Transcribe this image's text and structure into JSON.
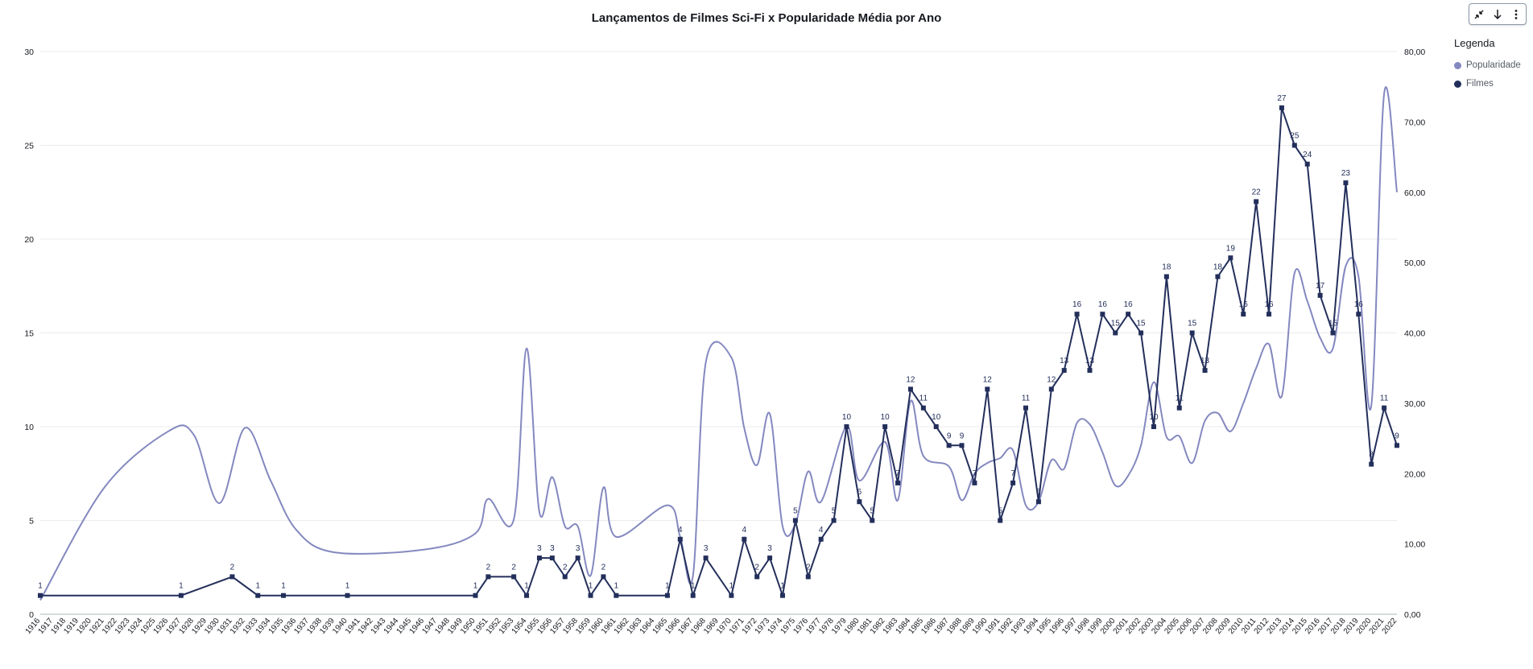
{
  "toolbar": {
    "icons": [
      "collapse-icon",
      "download-icon",
      "more-options-icon"
    ]
  },
  "chart_data": {
    "type": "line",
    "title": "Lançamentos de Filmes Sci-Fi x Popularidade Média por Ano",
    "legend": {
      "title": "Legenda",
      "position": "top-right"
    },
    "grid": true,
    "y_left": {
      "range": [
        0,
        30
      ],
      "ticks": [
        "0",
        "5",
        "10",
        "15",
        "20",
        "25",
        "30"
      ]
    },
    "y_right": {
      "range": [
        0,
        80
      ],
      "ticks": [
        "0,00",
        "10,00",
        "20,00",
        "30,00",
        "40,00",
        "50,00",
        "60,00",
        "70,00",
        "80,00"
      ]
    },
    "x": [
      "1916",
      "1917",
      "1918",
      "1919",
      "1920",
      "1921",
      "1922",
      "1923",
      "1924",
      "1925",
      "1926",
      "1927",
      "1928",
      "1929",
      "1930",
      "1931",
      "1932",
      "1933",
      "1934",
      "1935",
      "1936",
      "1937",
      "1938",
      "1939",
      "1940",
      "1941",
      "1942",
      "1943",
      "1944",
      "1945",
      "1946",
      "1947",
      "1948",
      "1949",
      "1950",
      "1951",
      "1952",
      "1953",
      "1954",
      "1955",
      "1956",
      "1957",
      "1958",
      "1959",
      "1960",
      "1961",
      "1962",
      "1963",
      "1964",
      "1965",
      "1966",
      "1967",
      "1968",
      "1969",
      "1970",
      "1971",
      "1972",
      "1973",
      "1974",
      "1975",
      "1976",
      "1977",
      "1978",
      "1979",
      "1980",
      "1981",
      "1982",
      "1983",
      "1984",
      "1985",
      "1986",
      "1987",
      "1988",
      "1989",
      "1990",
      "1991",
      "1992",
      "1993",
      "1994",
      "1995",
      "1996",
      "1997",
      "1998",
      "1999",
      "2000",
      "2001",
      "2002",
      "2003",
      "2004",
      "2005",
      "2006",
      "2007",
      "2008",
      "2009",
      "2010",
      "2011",
      "2012",
      "2013",
      "2014",
      "2015",
      "2016",
      "2017",
      "2018",
      "2019",
      "2020",
      "2021",
      "2022"
    ],
    "series": [
      {
        "name": "Popularidade",
        "axis": "right",
        "color": "#8488bf",
        "points": [
          [
            1916,
            2
          ],
          [
            1921,
            18
          ],
          [
            1926,
            26
          ],
          [
            1928,
            25.5
          ],
          [
            1930,
            15.8
          ],
          [
            1932,
            26.5
          ],
          [
            1934,
            19
          ],
          [
            1936,
            12
          ],
          [
            1939,
            8.8
          ],
          [
            1946,
            9.2
          ],
          [
            1950,
            11.5
          ],
          [
            1951,
            16.4
          ],
          [
            1953,
            13.5
          ],
          [
            1954,
            37.8
          ],
          [
            1955,
            14.5
          ],
          [
            1956,
            19.5
          ],
          [
            1957,
            12.5
          ],
          [
            1958,
            12.5
          ],
          [
            1959,
            5.5
          ],
          [
            1960,
            18
          ],
          [
            1961,
            11
          ],
          [
            1965,
            15.5
          ],
          [
            1966,
            11
          ],
          [
            1967,
            5.5
          ],
          [
            1968,
            35.8
          ],
          [
            1970,
            36.5
          ],
          [
            1971,
            26.5
          ],
          [
            1972,
            21.2
          ],
          [
            1973,
            28.5
          ],
          [
            1974,
            12.5
          ],
          [
            1975,
            12.8
          ],
          [
            1976,
            20.3
          ],
          [
            1977,
            16
          ],
          [
            1979,
            26.7
          ],
          [
            1980,
            19
          ],
          [
            1982,
            24.5
          ],
          [
            1983,
            16.2
          ],
          [
            1984,
            30.3
          ],
          [
            1985,
            22.5
          ],
          [
            1987,
            21
          ],
          [
            1988,
            16.2
          ],
          [
            1989,
            20
          ],
          [
            1990,
            21.5
          ],
          [
            1991,
            22.2
          ],
          [
            1992,
            23.3
          ],
          [
            1993,
            15.5
          ],
          [
            1994,
            16
          ],
          [
            1995,
            21.9
          ],
          [
            1996,
            20.7
          ],
          [
            1997,
            27.2
          ],
          [
            1998,
            27
          ],
          [
            1999,
            23
          ],
          [
            2000,
            18.3
          ],
          [
            2001,
            19.7
          ],
          [
            2002,
            24
          ],
          [
            2003,
            33
          ],
          [
            2004,
            25.2
          ],
          [
            2005,
            25.3
          ],
          [
            2006,
            21.5
          ],
          [
            2007,
            27.5
          ],
          [
            2008,
            28.6
          ],
          [
            2009,
            26
          ],
          [
            2010,
            30
          ],
          [
            2011,
            35
          ],
          [
            2012,
            38.4
          ],
          [
            2013,
            31
          ],
          [
            2014,
            48.5
          ],
          [
            2015,
            44.5
          ],
          [
            2016,
            39.3
          ],
          [
            2017,
            37.8
          ],
          [
            2018,
            49.5
          ],
          [
            2019,
            48
          ],
          [
            2020,
            29.7
          ],
          [
            2021,
            74
          ],
          [
            2022,
            60
          ]
        ]
      },
      {
        "name": "Filmes",
        "axis": "left",
        "color": "#232f5b",
        "points": [
          [
            1916,
            1
          ],
          [
            1927,
            1
          ],
          [
            1931,
            2
          ],
          [
            1933,
            1
          ],
          [
            1935,
            1
          ],
          [
            1940,
            1
          ],
          [
            1950,
            1
          ],
          [
            1951,
            2
          ],
          [
            1953,
            2
          ],
          [
            1954,
            1
          ],
          [
            1955,
            3
          ],
          [
            1956,
            3
          ],
          [
            1957,
            2
          ],
          [
            1958,
            3
          ],
          [
            1959,
            1
          ],
          [
            1960,
            2
          ],
          [
            1961,
            1
          ],
          [
            1965,
            1
          ],
          [
            1966,
            4
          ],
          [
            1967,
            1
          ],
          [
            1968,
            3
          ],
          [
            1970,
            1
          ],
          [
            1971,
            4
          ],
          [
            1972,
            2
          ],
          [
            1973,
            3
          ],
          [
            1974,
            1
          ],
          [
            1975,
            5
          ],
          [
            1976,
            2
          ],
          [
            1977,
            4
          ],
          [
            1978,
            5
          ],
          [
            1979,
            10
          ],
          [
            1980,
            6
          ],
          [
            1981,
            5
          ],
          [
            1982,
            10
          ],
          [
            1983,
            7
          ],
          [
            1984,
            12
          ],
          [
            1985,
            11
          ],
          [
            1986,
            10
          ],
          [
            1987,
            9
          ],
          [
            1988,
            9
          ],
          [
            1989,
            7
          ],
          [
            1990,
            12
          ],
          [
            1991,
            5
          ],
          [
            1992,
            7
          ],
          [
            1993,
            11
          ],
          [
            1994,
            6
          ],
          [
            1995,
            12
          ],
          [
            1996,
            13
          ],
          [
            1997,
            16
          ],
          [
            1998,
            13
          ],
          [
            1999,
            16
          ],
          [
            2000,
            15
          ],
          [
            2001,
            16
          ],
          [
            2002,
            15
          ],
          [
            2003,
            10
          ],
          [
            2004,
            18
          ],
          [
            2005,
            11
          ],
          [
            2006,
            15
          ],
          [
            2007,
            13
          ],
          [
            2008,
            18
          ],
          [
            2009,
            19
          ],
          [
            2010,
            16
          ],
          [
            2011,
            22
          ],
          [
            2012,
            16
          ],
          [
            2013,
            27
          ],
          [
            2014,
            25
          ],
          [
            2015,
            24
          ],
          [
            2016,
            17
          ],
          [
            2017,
            15
          ],
          [
            2018,
            23
          ],
          [
            2019,
            16
          ],
          [
            2020,
            8
          ],
          [
            2021,
            11
          ],
          [
            2022,
            9
          ]
        ]
      }
    ]
  }
}
